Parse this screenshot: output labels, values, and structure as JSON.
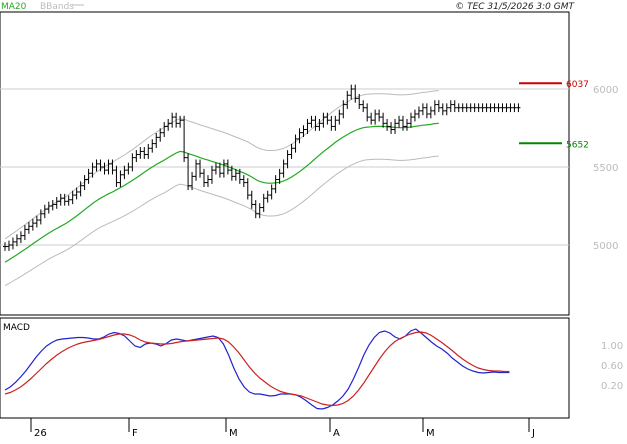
{
  "header": {
    "legend": [
      {
        "label": "MA20",
        "color": "#22aa22"
      },
      {
        "label": "BBands",
        "color": "#bbbbbb"
      }
    ],
    "copyright": "© TEC 31/5/2026 3:0 GMT"
  },
  "price_panel": {
    "yticks": [
      {
        "label": "6000",
        "value": 6000
      },
      {
        "label": "5500",
        "value": 5500
      },
      {
        "label": "5000",
        "value": 5000
      }
    ],
    "levels": [
      {
        "label": "6037",
        "value": 6037,
        "color": "#cc0000"
      },
      {
        "label": "5652",
        "value": 5652,
        "color": "#008800"
      }
    ]
  },
  "macd_panel": {
    "title": "MACD",
    "yticks": [
      {
        "label": "1.00",
        "value": 1.0
      },
      {
        "label": "0.60",
        "value": 0.6
      },
      {
        "label": "0.20",
        "value": 0.2
      }
    ]
  },
  "x_axis": {
    "labels": [
      "26",
      "F",
      "M",
      "A",
      "M",
      "J"
    ]
  },
  "colors": {
    "price_bars": "#000000",
    "ma20": "#22aa22",
    "bbands": "#bbbbbb",
    "macd": "#2222cc",
    "signal": "#cc2222",
    "grid": "#cccccc"
  },
  "chart_data": [
    {
      "type": "ohlc",
      "x": [
        1,
        2,
        3,
        4,
        5,
        6,
        7,
        8,
        9,
        10,
        11,
        12,
        13,
        14,
        15,
        16,
        17,
        18,
        19,
        20,
        21,
        22,
        23,
        24,
        25,
        26,
        27,
        28,
        29,
        30,
        31,
        32,
        33,
        34,
        35,
        36,
        37,
        38,
        39,
        40,
        41,
        42,
        43,
        44,
        45,
        46,
        47,
        48,
        49,
        50,
        51,
        52,
        53,
        54,
        55,
        56,
        57,
        58,
        59,
        60,
        61,
        62,
        63,
        64,
        65,
        66,
        67,
        68,
        69,
        70,
        71,
        72,
        73,
        74,
        75,
        76,
        77,
        78,
        79,
        80,
        81,
        82,
        83,
        84,
        85,
        86,
        87,
        88,
        89,
        90,
        91,
        92,
        93,
        94,
        95,
        96,
        97,
        98,
        99,
        100,
        101,
        102,
        103,
        104,
        105,
        106,
        107,
        108,
        109,
        110,
        111,
        112,
        113,
        114,
        115,
        116,
        117,
        118,
        119,
        120,
        121,
        122,
        123,
        124,
        125,
        126,
        127,
        128,
        129,
        130
      ],
      "close": [
        4990,
        5000,
        5020,
        5040,
        5060,
        5100,
        5120,
        5140,
        5160,
        5200,
        5230,
        5250,
        5260,
        5280,
        5300,
        5280,
        5290,
        5320,
        5340,
        5380,
        5420,
        5460,
        5500,
        5520,
        5500,
        5480,
        5520,
        5480,
        5400,
        5450,
        5480,
        5500,
        5560,
        5580,
        5600,
        5580,
        5620,
        5650,
        5690,
        5720,
        5760,
        5780,
        5820,
        5780,
        5800,
        5560,
        5380,
        5440,
        5520,
        5460,
        5400,
        5420,
        5480,
        5500,
        5460,
        5520,
        5480,
        5440,
        5460,
        5420,
        5400,
        5320,
        5260,
        5200,
        5240,
        5300,
        5320,
        5360,
        5420,
        5460,
        5520,
        5580,
        5620,
        5680,
        5720,
        5740,
        5780,
        5800,
        5760,
        5780,
        5820,
        5800,
        5760,
        5800,
        5840,
        5900,
        5960,
        6000,
        5940,
        5900,
        5880,
        5820,
        5800,
        5840,
        5820,
        5780,
        5760,
        5740,
        5780,
        5800,
        5760,
        5780,
        5820,
        5840,
        5860,
        5880,
        5840,
        5860,
        5900,
        5880,
        5860,
        5880,
        5900,
        5880,
        5880,
        5880,
        5880,
        5880,
        5880,
        5880,
        5880,
        5880,
        5880,
        5880,
        5880,
        5880,
        5880,
        5880,
        5880,
        5880
      ]
    },
    {
      "type": "line",
      "series": [
        {
          "name": "MA20",
          "x_start": 1,
          "values": [
            4890,
            4905,
            4922,
            4938,
            4955,
            4972,
            4990,
            5008,
            5025,
            5042,
            5060,
            5076,
            5092,
            5106,
            5120,
            5134,
            5150,
            5168,
            5186,
            5206,
            5226,
            5246,
            5266,
            5284,
            5300,
            5314,
            5328,
            5340,
            5354,
            5368,
            5382,
            5398,
            5414,
            5430,
            5448,
            5466,
            5484,
            5500,
            5516,
            5530,
            5544,
            5560,
            5575,
            5590,
            5600,
            5596,
            5586,
            5578,
            5570,
            5560,
            5552,
            5544,
            5536,
            5528,
            5520,
            5512,
            5502,
            5492,
            5482,
            5472,
            5462,
            5450,
            5436,
            5420,
            5408,
            5400,
            5396,
            5396,
            5398,
            5402,
            5410,
            5422,
            5436,
            5452,
            5470,
            5490,
            5510,
            5532,
            5554,
            5576,
            5598,
            5618,
            5638,
            5658,
            5676,
            5692,
            5708,
            5722,
            5734,
            5744,
            5752,
            5756,
            5758,
            5760,
            5760,
            5760,
            5758,
            5756,
            5754,
            5752,
            5752,
            5754,
            5756,
            5760,
            5764,
            5768,
            5770,
            5774,
            5778,
            5780
          ]
        }
      ]
    },
    {
      "type": "line",
      "series": [
        {
          "name": "MACD",
          "values": [
            0.1,
            0.16,
            0.25,
            0.36,
            0.48,
            0.62,
            0.76,
            0.88,
            0.98,
            1.05,
            1.1,
            1.12,
            1.13,
            1.14,
            1.15,
            1.15,
            1.14,
            1.12,
            1.12,
            1.16,
            1.22,
            1.25,
            1.23,
            1.18,
            1.08,
            0.98,
            0.95,
            1.02,
            1.04,
            1.02,
            0.98,
            1.03,
            1.1,
            1.12,
            1.1,
            1.08,
            1.1,
            1.12,
            1.14,
            1.16,
            1.18,
            1.15,
            1.02,
            0.8,
            0.54,
            0.32,
            0.16,
            0.06,
            0.02,
            0.02,
            0.0,
            -0.02,
            -0.01,
            0.02,
            0.02,
            0.02,
            0.0,
            -0.05,
            -0.12,
            -0.2,
            -0.27,
            -0.28,
            -0.25,
            -0.2,
            -0.12,
            -0.02,
            0.12,
            0.32,
            0.55,
            0.8,
            1.0,
            1.15,
            1.25,
            1.28,
            1.24,
            1.16,
            1.12,
            1.18,
            1.28,
            1.32,
            1.24,
            1.15,
            1.06,
            0.98,
            0.92,
            0.84,
            0.74,
            0.66,
            0.58,
            0.52,
            0.48,
            0.45,
            0.44,
            0.45,
            0.46,
            0.45,
            0.45,
            0.45
          ]
        },
        {
          "name": "Signal",
          "values": [
            0.02,
            0.05,
            0.1,
            0.16,
            0.24,
            0.33,
            0.43,
            0.53,
            0.63,
            0.72,
            0.8,
            0.87,
            0.93,
            0.98,
            1.02,
            1.05,
            1.07,
            1.09,
            1.11,
            1.14,
            1.17,
            1.2,
            1.22,
            1.22,
            1.2,
            1.16,
            1.1,
            1.06,
            1.04,
            1.03,
            1.02,
            1.02,
            1.03,
            1.05,
            1.07,
            1.08,
            1.09,
            1.1,
            1.11,
            1.12,
            1.13,
            1.14,
            1.12,
            1.06,
            0.96,
            0.84,
            0.7,
            0.56,
            0.44,
            0.34,
            0.26,
            0.18,
            0.12,
            0.07,
            0.04,
            0.02,
            0.0,
            -0.02,
            -0.06,
            -0.1,
            -0.14,
            -0.18,
            -0.2,
            -0.21,
            -0.2,
            -0.17,
            -0.11,
            -0.02,
            0.1,
            0.24,
            0.4,
            0.56,
            0.72,
            0.86,
            0.98,
            1.07,
            1.13,
            1.18,
            1.22,
            1.25,
            1.26,
            1.24,
            1.19,
            1.12,
            1.05,
            0.97,
            0.89,
            0.8,
            0.72,
            0.65,
            0.59,
            0.54,
            0.51,
            0.49,
            0.48,
            0.48,
            0.47,
            0.47
          ]
        }
      ]
    }
  ]
}
